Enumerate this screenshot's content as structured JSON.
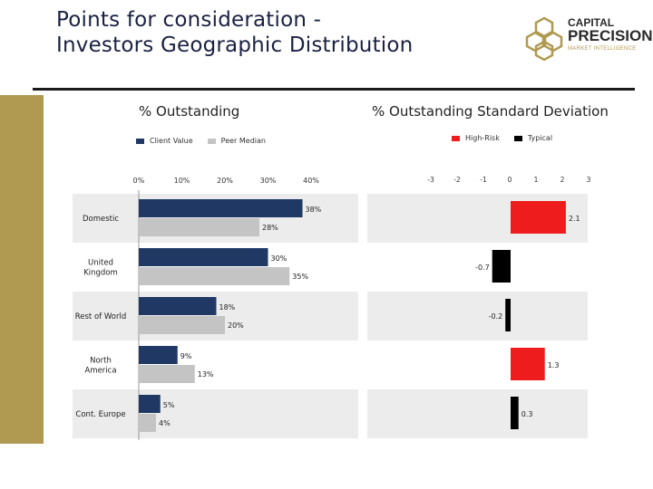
{
  "title": {
    "line1": "Points for consideration -",
    "line2": "Investors Geographic Distribution"
  },
  "logo": {
    "line1": "CAPITAL",
    "line2": "PRECISION",
    "line3": "MARKET INTELLIGENCE"
  },
  "colors": {
    "gold": "#b09a52",
    "client_value": "#1f3864",
    "peer_median": "#c4c4c4",
    "high_risk": "#ee1c1c",
    "typical": "#000000",
    "band": "#ececec"
  },
  "chart_data": [
    {
      "type": "bar",
      "orientation": "horizontal",
      "title": "% Outstanding",
      "categories": [
        "Domestic",
        "United Kingdom",
        "Rest of World",
        "North America",
        "Cont. Europe"
      ],
      "category_display": [
        [
          "Domestic"
        ],
        [
          "United",
          "Kingdom"
        ],
        [
          "Rest of World"
        ],
        [
          "North",
          "America"
        ],
        [
          "Cont. Europe"
        ]
      ],
      "series": [
        {
          "name": "Client Value",
          "values": [
            38,
            30,
            18,
            9,
            5
          ],
          "labels": [
            "38%",
            "30%",
            "18%",
            "9%",
            "5%"
          ]
        },
        {
          "name": "Peer Median",
          "values": [
            28,
            35,
            20,
            13,
            4
          ],
          "labels": [
            "28%",
            "35%",
            "20%",
            "13%",
            "4%"
          ]
        }
      ],
      "xticks": [
        "0%",
        "10%",
        "20%",
        "30%",
        "40%"
      ],
      "tick_values": [
        0,
        10,
        20,
        30,
        40
      ],
      "legend_position": "top"
    },
    {
      "type": "bar",
      "orientation": "horizontal",
      "title": "% Outstanding Standard Deviation",
      "categories": [
        "Domestic",
        "United Kingdom",
        "Rest of World",
        "North America",
        "Cont. Europe"
      ],
      "values": [
        2.1,
        -0.7,
        -0.2,
        1.3,
        0.3
      ],
      "labels": [
        "2.1",
        "-0.7",
        "-0.2",
        "1.3",
        "0.3"
      ],
      "risk": [
        "High-Risk",
        "Typical",
        "Typical",
        "High-Risk",
        "Typical"
      ],
      "legend": [
        "High-Risk",
        "Typical"
      ],
      "xticks": [
        "-3",
        "-2",
        "-1",
        "0",
        "1",
        "2",
        "3"
      ],
      "tick_values": [
        -3,
        -2,
        -1,
        0,
        1,
        2,
        3
      ],
      "xlim": [
        -3,
        3
      ],
      "legend_position": "top"
    }
  ]
}
